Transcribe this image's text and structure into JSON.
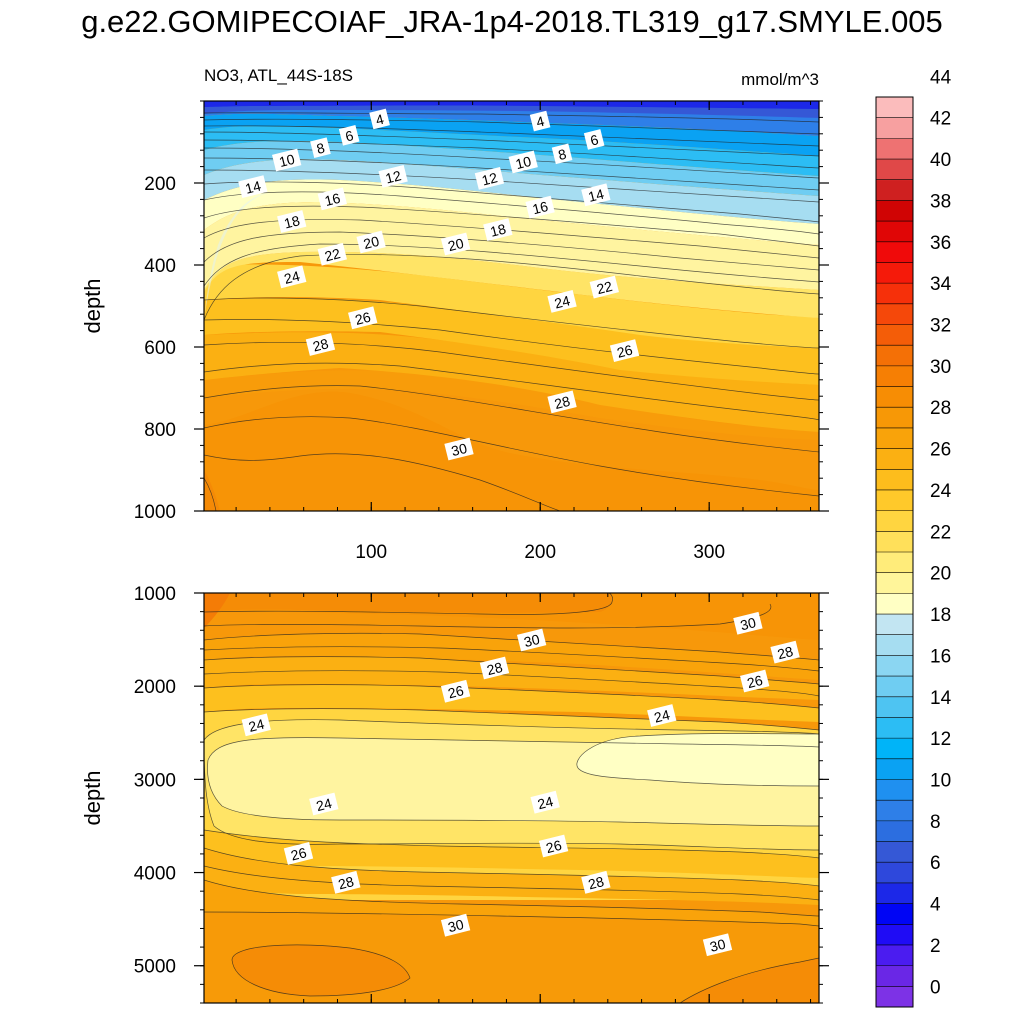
{
  "title": "g.e22.GOMIPECOIAF_JRA-1p4-2018.TL319_g17.SMYLE.005",
  "chart_data": [
    {
      "type": "contour",
      "panel": "top",
      "left_label": "NO3, ATL_44S-18S",
      "right_label": "mmol/m^3",
      "xlabel": "",
      "ylabel": "depth",
      "xlim": [
        1,
        365
      ],
      "ylim": [
        1000,
        0
      ],
      "x_ticks": [
        100,
        200,
        300
      ],
      "y_ticks": [
        200,
        400,
        600,
        800,
        1000
      ],
      "contour_levels_labeled": [
        4,
        6,
        8,
        10,
        12,
        14,
        16,
        18,
        20,
        22,
        24,
        26,
        28,
        30
      ],
      "contour_labels": [
        {
          "day": 105,
          "depth": 45,
          "value": "4"
        },
        {
          "day": 200,
          "depth": 50,
          "value": "4"
        },
        {
          "day": 87,
          "depth": 85,
          "value": "6"
        },
        {
          "day": 232,
          "depth": 95,
          "value": "6"
        },
        {
          "day": 70,
          "depth": 115,
          "value": "8"
        },
        {
          "day": 213,
          "depth": 130,
          "value": "8"
        },
        {
          "day": 50,
          "depth": 145,
          "value": "10"
        },
        {
          "day": 190,
          "depth": 150,
          "value": "10"
        },
        {
          "day": 113,
          "depth": 185,
          "value": "12"
        },
        {
          "day": 170,
          "depth": 190,
          "value": "12"
        },
        {
          "day": 30,
          "depth": 210,
          "value": "14"
        },
        {
          "day": 233,
          "depth": 230,
          "value": "14"
        },
        {
          "day": 77,
          "depth": 240,
          "value": "16"
        },
        {
          "day": 200,
          "depth": 260,
          "value": "16"
        },
        {
          "day": 53,
          "depth": 295,
          "value": "18"
        },
        {
          "day": 175,
          "depth": 315,
          "value": "18"
        },
        {
          "day": 100,
          "depth": 345,
          "value": "20"
        },
        {
          "day": 150,
          "depth": 350,
          "value": "20"
        },
        {
          "day": 77,
          "depth": 375,
          "value": "22"
        },
        {
          "day": 238,
          "depth": 455,
          "value": "22"
        },
        {
          "day": 53,
          "depth": 430,
          "value": "24"
        },
        {
          "day": 213,
          "depth": 490,
          "value": "24"
        },
        {
          "day": 95,
          "depth": 530,
          "value": "26"
        },
        {
          "day": 250,
          "depth": 610,
          "value": "26"
        },
        {
          "day": 70,
          "depth": 595,
          "value": "28"
        },
        {
          "day": 213,
          "depth": 735,
          "value": "28"
        },
        {
          "day": 152,
          "depth": 850,
          "value": "30"
        }
      ]
    },
    {
      "type": "contour",
      "panel": "bottom",
      "left_label": "",
      "right_label": "",
      "xlabel": "",
      "ylabel": "depth",
      "xlim": [
        1,
        365
      ],
      "ylim": [
        5400,
        1000
      ],
      "x_ticks": [
        100,
        200,
        300
      ],
      "y_ticks": [
        1000,
        2000,
        3000,
        4000,
        5000
      ],
      "contour_levels_labeled": [
        24,
        26,
        28,
        30
      ],
      "contour_labels": [
        {
          "day": 195,
          "depth": 1510,
          "value": "30"
        },
        {
          "day": 323,
          "depth": 1330,
          "value": "30"
        },
        {
          "day": 173,
          "depth": 1810,
          "value": "28"
        },
        {
          "day": 345,
          "depth": 1640,
          "value": "28"
        },
        {
          "day": 150,
          "depth": 2060,
          "value": "26"
        },
        {
          "day": 327,
          "depth": 1950,
          "value": "26"
        },
        {
          "day": 32,
          "depth": 2420,
          "value": "24"
        },
        {
          "day": 272,
          "depth": 2320,
          "value": "24"
        },
        {
          "day": 72,
          "depth": 3270,
          "value": "24"
        },
        {
          "day": 203,
          "depth": 3250,
          "value": "24"
        },
        {
          "day": 57,
          "depth": 3800,
          "value": "26"
        },
        {
          "day": 208,
          "depth": 3720,
          "value": "26"
        },
        {
          "day": 85,
          "depth": 4110,
          "value": "28"
        },
        {
          "day": 233,
          "depth": 4110,
          "value": "28"
        },
        {
          "day": 150,
          "depth": 4570,
          "value": "30"
        },
        {
          "day": 305,
          "depth": 4780,
          "value": "30"
        }
      ]
    }
  ],
  "colorbar": {
    "labels": [
      "0",
      "2",
      "4",
      "6",
      "8",
      "10",
      "12",
      "14",
      "16",
      "18",
      "20",
      "22",
      "24",
      "26",
      "28",
      "30",
      "32",
      "34",
      "36",
      "38",
      "40",
      "42",
      "44"
    ],
    "colors": [
      "#7d32e6",
      "#6a27e6",
      "#4b1cf0",
      "#1f0cf5",
      "#0005f5",
      "#1c28e8",
      "#2e48dc",
      "#3558d6",
      "#2c6ee0",
      "#2e7fe8",
      "#1f90f0",
      "#0aa2f3",
      "#00b4f8",
      "#2cbdf4",
      "#4ec4f2",
      "#6fcdf2",
      "#8bd6f2",
      "#a6ddf1",
      "#c2e5f2",
      "#ffffc4",
      "#fff59a",
      "#ffec7a",
      "#ffe05a",
      "#ffd540",
      "#ffc92a",
      "#fdbd1c",
      "#fbb012",
      "#f9a30a",
      "#f79806",
      "#f78d04",
      "#f67f04",
      "#f47006",
      "#f45d08",
      "#f5480a",
      "#f6300a",
      "#f51a0a",
      "#f00a0a",
      "#e00606",
      "#d00404",
      "#cf2020",
      "#e04848",
      "#ee7272",
      "#f7a0a0",
      "#fbbcbc"
    ]
  }
}
